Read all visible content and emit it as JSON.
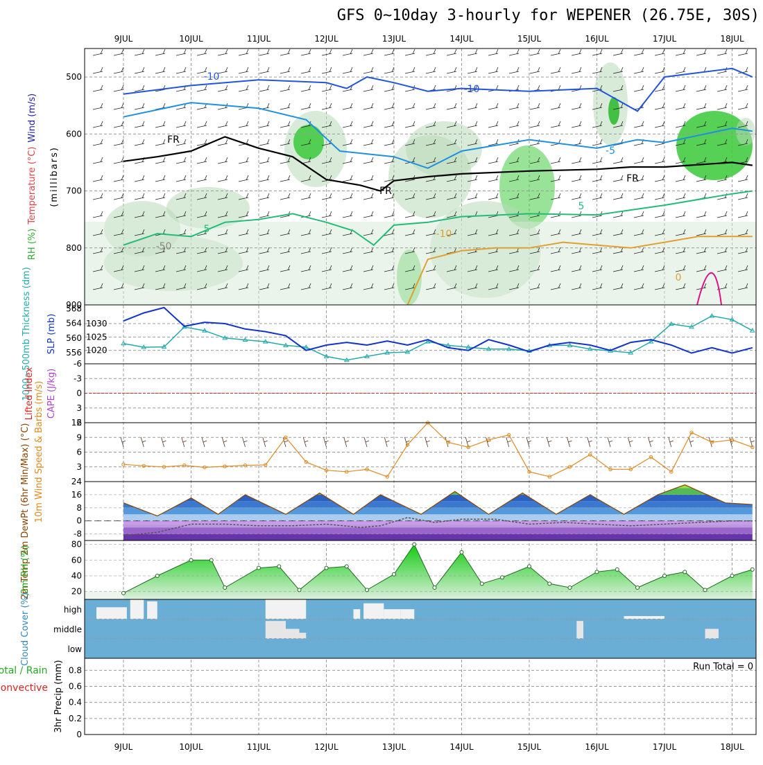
{
  "title": "GFS 0~10day 3-hourly for WEPENER (26.75E, 30S)",
  "dates": [
    "9JUL",
    "10JUL",
    "11JUL",
    "12JUL",
    "13JUL",
    "14JUL",
    "15JUL",
    "16JUL",
    "17JUL",
    "18JUL"
  ],
  "colors": {
    "panel_border": "#000000",
    "grid": "#999999",
    "cloud_bg": "#6aaed6",
    "rh_green": "#22cc22",
    "temp_blue": "#3b78d0",
    "dewpt_purple": "#9966cc"
  },
  "chart_data": [
    {
      "type": "contour",
      "name": "upper-air",
      "ylabel_parts": [
        "RH (%)",
        "Temperature (°C)",
        "Wind (m/s)"
      ],
      "ylabel2": "(millibars)",
      "yticks": [
        500,
        600,
        700,
        800,
        900
      ],
      "ylim": [
        450,
        900
      ],
      "contour_labels": [
        "-10",
        "-10",
        "FR",
        "FR",
        "FR",
        "-5",
        "5",
        "5",
        "-10",
        "0",
        "-50"
      ],
      "isotherms": [
        {
          "name": "-10",
          "color": "#2255dd",
          "x": [
            0,
            1,
            2,
            3,
            3.3,
            3.6,
            4,
            4.5,
            5,
            6,
            7,
            7.6,
            8,
            9,
            9.3
          ],
          "y": [
            530,
            515,
            505,
            510,
            520,
            500,
            510,
            525,
            520,
            525,
            520,
            560,
            500,
            485,
            500
          ]
        },
        {
          "name": "-5",
          "color": "#1e90e0",
          "x": [
            0,
            1,
            2,
            2.7,
            3.2,
            3.6,
            4,
            4.5,
            5,
            6,
            7,
            7.6,
            8,
            9,
            9.3
          ],
          "y": [
            570,
            545,
            555,
            575,
            630,
            635,
            640,
            660,
            630,
            610,
            625,
            610,
            615,
            590,
            595
          ]
        },
        {
          "name": "FR",
          "color": "#000000",
          "x": [
            0,
            0.5,
            1,
            1.5,
            2,
            2.5,
            3,
            3.5,
            3.8,
            4,
            4.5,
            5,
            6,
            7,
            7.5,
            8,
            9,
            9.3
          ],
          "y": [
            648,
            640,
            630,
            605,
            625,
            640,
            680,
            690,
            700,
            682,
            675,
            670,
            665,
            662,
            658,
            658,
            650,
            655
          ]
        },
        {
          "name": "5",
          "color": "#22bb77",
          "x": [
            0,
            0.5,
            1,
            1.5,
            2,
            2.5,
            3,
            3.4,
            3.7,
            4,
            4.5,
            5,
            6,
            7,
            8,
            9,
            9.3
          ],
          "y": [
            795,
            775,
            780,
            755,
            750,
            740,
            755,
            770,
            795,
            760,
            755,
            745,
            740,
            742,
            725,
            705,
            700
          ]
        },
        {
          "name": "10",
          "color": "#e0a030",
          "x": [
            4.2,
            4.5,
            5,
            5.5,
            6,
            6.5,
            7,
            7.5,
            8,
            8.5,
            9,
            9.3
          ],
          "y": [
            900,
            820,
            805,
            800,
            800,
            790,
            795,
            800,
            790,
            780,
            780,
            780
          ]
        }
      ]
    },
    {
      "type": "line",
      "name": "thickness-slp",
      "ylabel_left": "1000~500mb Thickness (dm)",
      "ylabel_right": "SLP (mb)",
      "thickness_ticks": [
        556,
        560,
        564,
        568
      ],
      "slp_ticks": [
        1020,
        1025,
        1030
      ],
      "series": [
        {
          "name": "Thickness",
          "color": "#22aaaa",
          "x": [
            0,
            0.3,
            0.6,
            0.9,
            1.2,
            1.5,
            1.8,
            2.1,
            2.4,
            2.7,
            3.0,
            3.3,
            3.6,
            3.9,
            4.2,
            4.5,
            4.8,
            5.1,
            5.4,
            5.7,
            6.0,
            6.3,
            6.6,
            6.9,
            7.2,
            7.5,
            7.8,
            8.1,
            8.4,
            8.7,
            9.0,
            9.3
          ],
          "y": [
            558.5,
            557.5,
            557.6,
            563,
            562,
            560,
            559.5,
            559,
            558,
            557.5,
            555,
            554,
            555,
            556,
            556.2,
            559,
            558,
            557.5,
            557,
            557,
            556.5,
            558,
            558,
            557,
            556.5,
            556,
            559,
            563.8,
            563,
            566,
            565,
            562
          ]
        },
        {
          "name": "SLP",
          "color": "#1133cc",
          "x": [
            0,
            0.3,
            0.6,
            0.9,
            1.2,
            1.5,
            1.8,
            2.1,
            2.4,
            2.7,
            3.0,
            3.3,
            3.6,
            3.9,
            4.2,
            4.5,
            4.8,
            5.1,
            5.4,
            5.7,
            6.0,
            6.3,
            6.6,
            6.9,
            7.2,
            7.5,
            7.8,
            8.1,
            8.4,
            8.7,
            9.0,
            9.3
          ],
          "y": [
            1031,
            1034,
            1036,
            1029,
            1030.5,
            1030,
            1028,
            1027,
            1025.5,
            1020,
            1022,
            1023,
            1022,
            1023.5,
            1022,
            1024,
            1021,
            1020,
            1024,
            1022,
            1019.5,
            1022,
            1023,
            1022,
            1020,
            1023,
            1024,
            1022,
            1019,
            1021,
            1019,
            1021
          ]
        }
      ]
    },
    {
      "type": "line",
      "name": "cape-li",
      "ylabel": "CAPE (J/kg)",
      "ylabel2": "Lifted Index",
      "yticks": [
        "-6",
        "-3",
        "0",
        "3",
        "6"
      ],
      "ylim": [
        -6,
        6
      ],
      "series": [
        {
          "name": "Lifted Index",
          "color": "#dd2222",
          "x": [
            0,
            9.3
          ],
          "y": [
            0,
            0
          ]
        }
      ]
    },
    {
      "type": "line",
      "name": "wind10m",
      "ylabel": "10m Wind Speed & Barbs (m/s)",
      "yticks": [
        3,
        6,
        9,
        12
      ],
      "ylim": [
        0,
        12
      ],
      "series": [
        {
          "name": "Speed",
          "color": "#e08a20",
          "x": [
            0,
            0.3,
            0.6,
            0.9,
            1.2,
            1.5,
            1.8,
            2.1,
            2.4,
            2.7,
            3.0,
            3.3,
            3.6,
            3.9,
            4.2,
            4.5,
            4.8,
            5.1,
            5.4,
            5.7,
            6.0,
            6.3,
            6.6,
            6.9,
            7.2,
            7.5,
            7.8,
            8.1,
            8.4,
            8.7,
            9.0,
            9.3
          ],
          "y": [
            3.5,
            3.2,
            3.0,
            3.3,
            2.9,
            3.1,
            3.3,
            3.4,
            9.0,
            4.0,
            2.3,
            2.0,
            2.5,
            1.0,
            7.5,
            12.0,
            8.0,
            7.0,
            8.5,
            9.5,
            2.0,
            1.0,
            3.0,
            5.5,
            2.5,
            2.5,
            5.0,
            2.0,
            10.0,
            8.0,
            8.5,
            7.0
          ]
        }
      ]
    },
    {
      "type": "area",
      "name": "temp-dewpt",
      "ylabel": "2m Temp 2m DewPt (6hr Min/Max) (°C)",
      "yticks": [
        -8,
        0,
        8,
        16,
        24
      ],
      "ylim": [
        -12,
        24
      ],
      "series": [
        {
          "name": "Temp",
          "color": "#884400",
          "x": [
            0,
            0.5,
            1,
            1.4,
            1.8,
            2.4,
            2.9,
            3.4,
            3.8,
            4.4,
            4.9,
            5.4,
            5.9,
            6.4,
            6.9,
            7.4,
            7.9,
            8.3,
            8.9,
            9.3
          ],
          "y": [
            11,
            3,
            14,
            4,
            16,
            4,
            17,
            4,
            16,
            4,
            18,
            4,
            17,
            4,
            16,
            4,
            16,
            22,
            11,
            10
          ]
        },
        {
          "name": "DewPt",
          "color": "#555555",
          "x": [
            0,
            0.5,
            1,
            1.5,
            2,
            2.5,
            3,
            3.5,
            3.8,
            4.2,
            4.6,
            5,
            5.5,
            6,
            6.5,
            7,
            7.5,
            8,
            8.5,
            9,
            9.3
          ],
          "y": [
            -9,
            -7,
            -2,
            -2,
            -3,
            -3,
            -2,
            -4,
            -3,
            2,
            -1,
            1,
            1,
            -2,
            -1,
            -2,
            -3,
            -2,
            -1,
            0,
            0
          ]
        }
      ]
    },
    {
      "type": "area",
      "name": "rh2m",
      "ylabel": "2m RH (%)",
      "yticks": [
        20,
        40,
        60,
        80
      ],
      "ylim": [
        10,
        85
      ],
      "series": [
        {
          "name": "RH",
          "color": "#22cc22",
          "x": [
            0,
            0.5,
            1,
            1.3,
            1.5,
            2,
            2.3,
            2.6,
            3,
            3.3,
            3.6,
            4,
            4.3,
            4.6,
            5,
            5.3,
            5.6,
            6,
            6.3,
            6.6,
            7,
            7.3,
            7.6,
            8,
            8.3,
            8.6,
            9,
            9.3
          ],
          "y": [
            18,
            40,
            60,
            60,
            25,
            50,
            52,
            22,
            50,
            52,
            22,
            42,
            80,
            25,
            70,
            30,
            38,
            52,
            30,
            25,
            45,
            48,
            25,
            40,
            45,
            22,
            40,
            48
          ]
        }
      ]
    },
    {
      "type": "bar",
      "name": "cloud-cover",
      "ylabel": "Cloud Cover (%)",
      "levels": [
        "high",
        "middle",
        "low"
      ],
      "high_blocks": [
        {
          "x0": 0.1,
          "x1": 0.55,
          "v": 0.6
        },
        {
          "x0": 0.6,
          "x1": 0.8,
          "v": 1
        },
        {
          "x0": 0.85,
          "x1": 1.0,
          "v": 0.9
        },
        {
          "x0": 2.6,
          "x1": 3.2,
          "v": 1
        },
        {
          "x0": 3.9,
          "x1": 4.0,
          "v": 0.5
        },
        {
          "x0": 4.05,
          "x1": 4.35,
          "v": 0.8
        },
        {
          "x0": 4.35,
          "x1": 4.6,
          "v": 0.5
        },
        {
          "x0": 4.6,
          "x1": 4.8,
          "v": 0.5
        },
        {
          "x0": 7.9,
          "x1": 8.5,
          "v": 0.15
        }
      ],
      "mid_blocks": [
        {
          "x0": 2.6,
          "x1": 2.9,
          "v": 0.9
        },
        {
          "x0": 2.9,
          "x1": 3.1,
          "v": 0.5
        },
        {
          "x0": 3.1,
          "x1": 3.2,
          "v": 0.3
        },
        {
          "x0": 7.2,
          "x1": 7.3,
          "v": 0.9
        },
        {
          "x0": 9.1,
          "x1": 9.3,
          "v": 0.5
        }
      ]
    },
    {
      "type": "bar",
      "name": "precip",
      "ylabel": "3hr Precip (mm)",
      "ylabel2": "Total / Rain",
      "ylabel3": "Convective",
      "yticks": [
        "0",
        "0.2",
        "0.4",
        "0.6",
        "0.8"
      ],
      "ylim": [
        0,
        0.95
      ],
      "run_total_label": "Run Total = 0",
      "values": []
    }
  ]
}
